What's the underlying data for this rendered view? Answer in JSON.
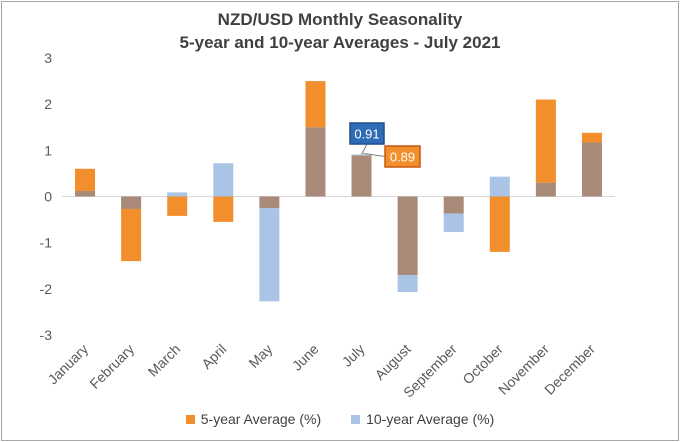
{
  "chart_data": {
    "type": "bar",
    "title": "NZD/USD Monthly  Seasonality",
    "subtitle": "5-year  and 10-year Averages  - July 2021",
    "categories": [
      "January",
      "February",
      "March",
      "April",
      "May",
      "June",
      "July",
      "August",
      "September",
      "October",
      "November",
      "December"
    ],
    "series": [
      {
        "name": "5-year Average (%)",
        "color": "#f28e2b",
        "values": [
          0.6,
          -1.4,
          -0.42,
          -0.55,
          -0.25,
          2.5,
          0.89,
          -1.7,
          -0.37,
          -1.2,
          2.1,
          1.38
        ]
      },
      {
        "name": "10-year Average (%)",
        "color": "#aac4e5",
        "values": [
          0.12,
          -0.27,
          0.09,
          0.72,
          -2.27,
          1.5,
          0.91,
          -2.07,
          -0.77,
          0.43,
          0.3,
          1.17
        ]
      }
    ],
    "overlap_color": "#a98a78",
    "ylim": [
      -3,
      3
    ],
    "yticks": [
      "3",
      "2",
      "1",
      "0",
      "-1",
      "-2",
      "-3"
    ],
    "annotations": [
      {
        "text": "0.91",
        "series": "10-year Average (%)",
        "category": "July"
      },
      {
        "text": "0.89",
        "series": "5-year Average (%)",
        "category": "July"
      }
    ],
    "legend_position": "bottom",
    "grid": false
  }
}
